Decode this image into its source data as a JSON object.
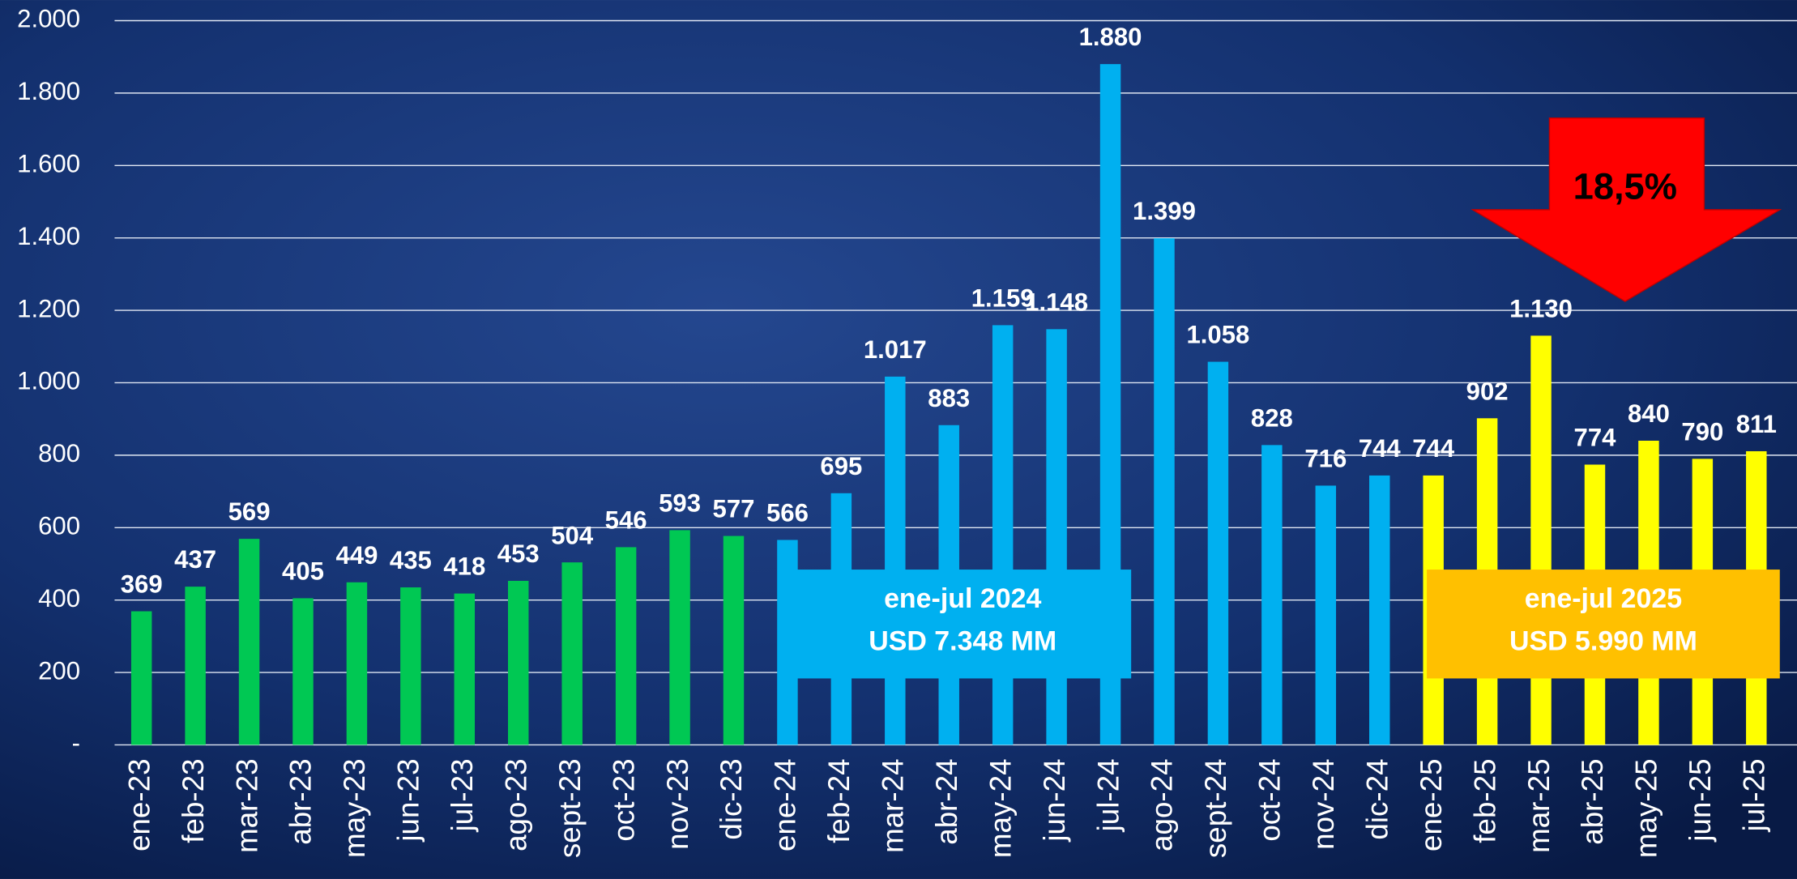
{
  "chart_data": {
    "type": "bar",
    "categories": [
      "ene-23",
      "feb-23",
      "mar-23",
      "abr-23",
      "may-23",
      "jun-23",
      "jul-23",
      "ago-23",
      "sept-23",
      "oct-23",
      "nov-23",
      "dic-23",
      "ene-24",
      "feb-24",
      "mar-24",
      "abr-24",
      "may-24",
      "jun-24",
      "jul-24",
      "ago-24",
      "sept-24",
      "oct-24",
      "nov-24",
      "dic-24",
      "ene-25",
      "feb-25",
      "mar-25",
      "abr-25",
      "may-25",
      "jun-25",
      "jul-25"
    ],
    "values": [
      369,
      437,
      569,
      405,
      449,
      435,
      418,
      453,
      504,
      546,
      593,
      577,
      566,
      695,
      1017,
      883,
      1159,
      1148,
      1880,
      1399,
      1058,
      828,
      716,
      744,
      744,
      902,
      1130,
      774,
      840,
      790,
      811
    ],
    "value_labels": [
      "369",
      "437",
      "569",
      "405",
      "449",
      "435",
      "418",
      "453",
      "504",
      "546",
      "593",
      "577",
      "566",
      "695",
      "1.017",
      "883",
      "1.159",
      "1.148",
      "1.880",
      "1.399",
      "1.058",
      "828",
      "716",
      "744",
      "744",
      "902",
      "1.130",
      "774",
      "840",
      "790",
      "811"
    ],
    "colors": [
      "#00c853",
      "#00c853",
      "#00c853",
      "#00c853",
      "#00c853",
      "#00c853",
      "#00c853",
      "#00c853",
      "#00c853",
      "#00c853",
      "#00c853",
      "#00c853",
      "#00b0f0",
      "#00b0f0",
      "#00b0f0",
      "#00b0f0",
      "#00b0f0",
      "#00b0f0",
      "#00b0f0",
      "#00b0f0",
      "#00b0f0",
      "#00b0f0",
      "#00b0f0",
      "#00b0f0",
      "#ffff00",
      "#ffff00",
      "#ffff00",
      "#ffff00",
      "#ffff00",
      "#ffff00",
      "#ffff00"
    ],
    "ylim": [
      0,
      2000
    ],
    "yticks": [
      {
        "value": 0,
        "label": "-"
      },
      200,
      400,
      600,
      800,
      {
        "value": 1000,
        "label": "1.000"
      },
      {
        "value": 1200,
        "label": "1.200"
      },
      {
        "value": 1400,
        "label": "1.400"
      },
      {
        "value": 1600,
        "label": "1.600"
      },
      {
        "value": 1800,
        "label": "1.800"
      },
      {
        "value": 2000,
        "label": "2.000"
      }
    ],
    "grid": true,
    "annotations": {
      "box_2024": [
        "ene-jul 2024",
        "USD 7.348 MM"
      ],
      "box_2025": [
        "ene-jul 2025",
        "USD 5.990 MM"
      ],
      "arrow": "18,5%"
    }
  }
}
